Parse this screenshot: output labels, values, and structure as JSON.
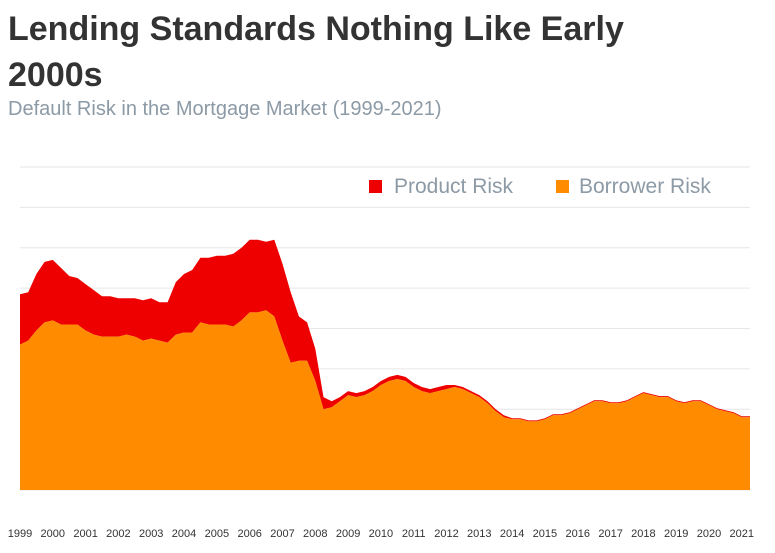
{
  "header": {
    "title": "Lending Standards Nothing Like Early 2000s",
    "subtitle": "Default Risk in the Mortgage Market (1999-2021)"
  },
  "chart_data": {
    "type": "area",
    "title": "Lending Standards Nothing Like Early 2000s",
    "subtitle": "Default Risk in the Mortgage Market (1999-2021)",
    "xlabel": "",
    "ylabel": "",
    "stacked": true,
    "ylim": [
      0,
      16
    ],
    "grid": true,
    "legend_position": "top-right",
    "x_tick_labels": [
      "1999",
      "2000",
      "2001",
      "2002",
      "2003",
      "2004",
      "2005",
      "2006",
      "2007",
      "2008",
      "2009",
      "2010",
      "2011",
      "2012",
      "2013",
      "2014",
      "2015",
      "2016",
      "2017",
      "2018",
      "2019",
      "2020",
      "2021"
    ],
    "x": [
      1999.0,
      1999.25,
      1999.5,
      1999.75,
      2000.0,
      2000.25,
      2000.5,
      2000.75,
      2001.0,
      2001.25,
      2001.5,
      2001.75,
      2002.0,
      2002.25,
      2002.5,
      2002.75,
      2003.0,
      2003.25,
      2003.5,
      2003.75,
      2004.0,
      2004.25,
      2004.5,
      2004.75,
      2005.0,
      2005.25,
      2005.5,
      2005.75,
      2006.0,
      2006.25,
      2006.5,
      2006.75,
      2007.0,
      2007.25,
      2007.5,
      2007.75,
      2008.0,
      2008.25,
      2008.5,
      2008.75,
      2009.0,
      2009.25,
      2009.5,
      2009.75,
      2010.0,
      2010.25,
      2010.5,
      2010.75,
      2011.0,
      2011.25,
      2011.5,
      2011.75,
      2012.0,
      2012.25,
      2012.5,
      2012.75,
      2013.0,
      2013.25,
      2013.5,
      2013.75,
      2014.0,
      2014.25,
      2014.5,
      2014.75,
      2015.0,
      2015.25,
      2015.5,
      2015.75,
      2016.0,
      2016.25,
      2016.5,
      2016.75,
      2017.0,
      2017.25,
      2017.5,
      2017.75,
      2018.0,
      2018.25,
      2018.5,
      2018.75,
      2019.0,
      2019.25,
      2019.5,
      2019.75,
      2020.0,
      2020.25,
      2020.5,
      2020.75,
      2021.0,
      2021.25
    ],
    "series": [
      {
        "name": "Borrower Risk",
        "color": "#ff8c00",
        "values": [
          7.2,
          7.4,
          7.9,
          8.3,
          8.4,
          8.2,
          8.2,
          8.2,
          7.9,
          7.7,
          7.6,
          7.6,
          7.6,
          7.7,
          7.6,
          7.4,
          7.5,
          7.4,
          7.3,
          7.7,
          7.8,
          7.8,
          8.3,
          8.2,
          8.2,
          8.2,
          8.1,
          8.4,
          8.8,
          8.8,
          8.9,
          8.6,
          7.4,
          6.3,
          6.4,
          6.4,
          5.4,
          4.0,
          4.1,
          4.4,
          4.7,
          4.6,
          4.7,
          4.9,
          5.2,
          5.4,
          5.5,
          5.4,
          5.1,
          4.9,
          4.8,
          4.9,
          5.0,
          5.1,
          5.0,
          4.8,
          4.6,
          4.3,
          3.9,
          3.6,
          3.5,
          3.5,
          3.4,
          3.4,
          3.5,
          3.7,
          3.7,
          3.8,
          4.0,
          4.2,
          4.4,
          4.4,
          4.3,
          4.3,
          4.4,
          4.6,
          4.8,
          4.7,
          4.6,
          4.6,
          4.4,
          4.3,
          4.4,
          4.4,
          4.2,
          4.0,
          3.9,
          3.8,
          3.6,
          3.6
        ]
      },
      {
        "name": "Product Risk",
        "color": "#ee0000",
        "values": [
          2.5,
          2.4,
          2.8,
          3.0,
          3.0,
          2.8,
          2.4,
          2.3,
          2.3,
          2.2,
          2.0,
          2.0,
          1.9,
          1.8,
          1.9,
          2.0,
          2.0,
          1.9,
          2.0,
          2.6,
          2.9,
          3.1,
          3.2,
          3.3,
          3.4,
          3.4,
          3.6,
          3.6,
          3.6,
          3.6,
          3.4,
          3.8,
          3.8,
          3.5,
          2.2,
          1.9,
          1.6,
          0.6,
          0.3,
          0.2,
          0.2,
          0.2,
          0.2,
          0.2,
          0.2,
          0.2,
          0.2,
          0.2,
          0.2,
          0.2,
          0.2,
          0.2,
          0.2,
          0.1,
          0.1,
          0.1,
          0.1,
          0.1,
          0.1,
          0.1,
          0.05,
          0.05,
          0.05,
          0.05,
          0.05,
          0.05,
          0.05,
          0.05,
          0.05,
          0.05,
          0.05,
          0.05,
          0.05,
          0.05,
          0.05,
          0.05,
          0.05,
          0.05,
          0.05,
          0.05,
          0.05,
          0.05,
          0.05,
          0.05,
          0.05,
          0.05,
          0.05,
          0.05,
          0.05,
          0.05
        ]
      }
    ]
  }
}
